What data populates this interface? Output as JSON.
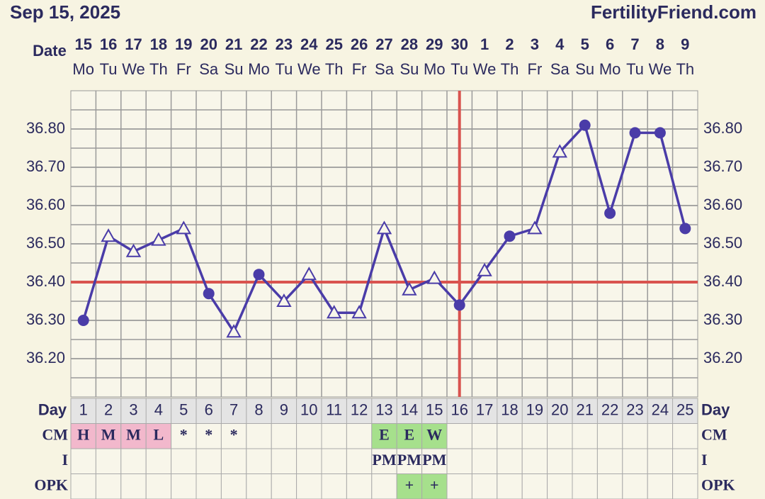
{
  "header": {
    "date": "Sep 15, 2025",
    "site": "FertilityFriend.com"
  },
  "chart_data": {
    "type": "line",
    "date_label": "Date",
    "day_label": "Day",
    "dates": [
      "15",
      "16",
      "17",
      "18",
      "19",
      "20",
      "21",
      "22",
      "23",
      "24",
      "25",
      "26",
      "27",
      "28",
      "29",
      "30",
      "1",
      "2",
      "3",
      "4",
      "5",
      "6",
      "7",
      "8",
      "9"
    ],
    "weekdays": [
      "Mo",
      "Tu",
      "We",
      "Th",
      "Fr",
      "Sa",
      "Su",
      "Mo",
      "Tu",
      "We",
      "Th",
      "Fr",
      "Sa",
      "Su",
      "Mo",
      "Tu",
      "We",
      "Th",
      "Fr",
      "Sa",
      "Su",
      "Mo",
      "Tu",
      "We",
      "Th"
    ],
    "days": [
      1,
      2,
      3,
      4,
      5,
      6,
      7,
      8,
      9,
      10,
      11,
      12,
      13,
      14,
      15,
      16,
      17,
      18,
      19,
      20,
      21,
      22,
      23,
      24,
      25
    ],
    "series": [
      {
        "color": "#4a3ca8",
        "values": [
          36.3,
          36.52,
          36.48,
          36.51,
          36.54,
          36.37,
          36.27,
          36.42,
          36.35,
          36.42,
          36.32,
          36.32,
          36.54,
          36.38,
          36.41,
          36.34,
          36.43,
          36.52,
          36.54,
          36.74,
          36.81,
          36.58,
          36.79,
          36.79,
          36.54
        ],
        "markers": [
          "circle",
          "triangle",
          "triangle",
          "triangle",
          "triangle",
          "circle",
          "triangle",
          "circle",
          "triangle",
          "triangle",
          "triangle",
          "triangle",
          "triangle",
          "triangle",
          "triangle",
          "circle",
          "triangle",
          "circle",
          "triangle",
          "triangle",
          "circle",
          "circle",
          "circle",
          "circle",
          "circle"
        ]
      }
    ],
    "ylim": [
      36.1,
      36.9
    ],
    "yticks": [
      {
        "value": 36.2,
        "label": "36.20"
      },
      {
        "value": 36.3,
        "label": "36.30"
      },
      {
        "value": 36.4,
        "label": "36.40"
      },
      {
        "value": 36.5,
        "label": "36.50"
      },
      {
        "value": 36.6,
        "label": "36.60"
      },
      {
        "value": 36.7,
        "label": "36.70"
      },
      {
        "value": 36.8,
        "label": "36.80"
      }
    ],
    "grid": true,
    "coverline": 36.4,
    "coverline_color": "#d9534f",
    "ovulation_day": 16,
    "rows": [
      {
        "label": "CM",
        "values": [
          "H",
          "M",
          "M",
          "L",
          "*",
          "*",
          "*",
          null,
          null,
          null,
          null,
          null,
          "E",
          "E",
          "W",
          null,
          null,
          null,
          null,
          null,
          null,
          null,
          null,
          null,
          null
        ],
        "colors": [
          "#f2b8cc",
          "#f2b8cc",
          "#f2b8cc",
          "#f2b8cc",
          null,
          null,
          null,
          null,
          null,
          null,
          null,
          null,
          "#a6e08c",
          "#a6e08c",
          "#a6e08c",
          null,
          null,
          null,
          null,
          null,
          null,
          null,
          null,
          null,
          null
        ]
      },
      {
        "label": "I",
        "values": [
          null,
          null,
          null,
          null,
          null,
          null,
          null,
          null,
          null,
          null,
          null,
          null,
          "PM",
          "PM",
          "PM",
          null,
          null,
          null,
          null,
          null,
          null,
          null,
          null,
          null,
          null
        ],
        "colors": [
          null,
          null,
          null,
          null,
          null,
          null,
          null,
          null,
          null,
          null,
          null,
          null,
          null,
          null,
          null,
          null,
          null,
          null,
          null,
          null,
          null,
          null,
          null,
          null,
          null
        ]
      },
      {
        "label": "OPK",
        "values": [
          null,
          null,
          null,
          null,
          null,
          null,
          null,
          null,
          null,
          null,
          null,
          null,
          null,
          "+",
          "+",
          null,
          null,
          null,
          null,
          null,
          null,
          null,
          null,
          null,
          null
        ],
        "colors": [
          null,
          null,
          null,
          null,
          null,
          null,
          null,
          null,
          null,
          null,
          null,
          null,
          null,
          "#a6e08c",
          "#a6e08c",
          null,
          null,
          null,
          null,
          null,
          null,
          null,
          null,
          null,
          null
        ]
      }
    ]
  }
}
